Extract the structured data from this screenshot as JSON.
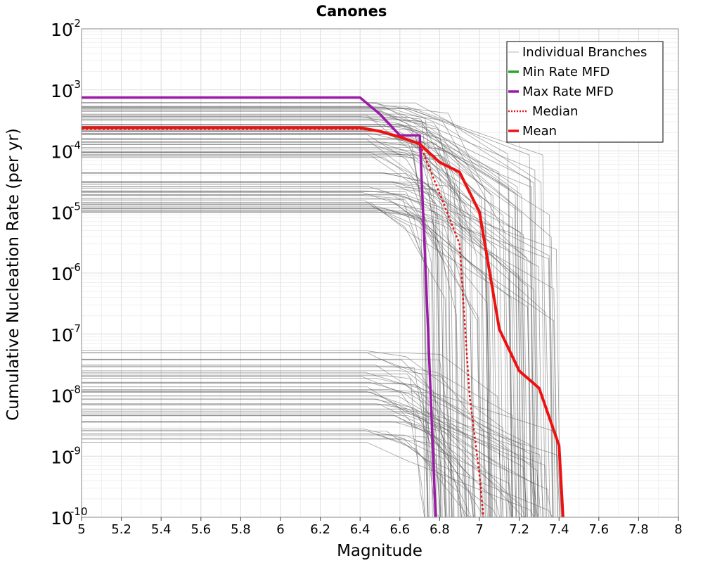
{
  "chart_data": {
    "type": "line",
    "title": "Canones",
    "xlabel": "Magnitude",
    "ylabel": "Cumulative Nucleation Rate (per yr)",
    "xlim": [
      5,
      8
    ],
    "ylim": [
      1e-10,
      0.01
    ],
    "y_scale": "log",
    "grid": true,
    "legend_position": "top-right",
    "x_ticks": [
      "5",
      "5.2",
      "5.4",
      "5.6",
      "5.8",
      "6",
      "6.2",
      "6.4",
      "6.6",
      "6.8",
      "7",
      "7.2",
      "7.4",
      "7.6",
      "7.8",
      "8"
    ],
    "x_tick_values": [
      5,
      5.2,
      5.4,
      5.6,
      5.8,
      6,
      6.2,
      6.4,
      6.6,
      6.8,
      7,
      7.2,
      7.4,
      7.6,
      7.8,
      8
    ],
    "y_ticks": [
      {
        "base": "10",
        "exp": "-10",
        "value": 1e-10
      },
      {
        "base": "10",
        "exp": "-9",
        "value": 1e-09
      },
      {
        "base": "10",
        "exp": "-8",
        "value": 1e-08
      },
      {
        "base": "10",
        "exp": "-7",
        "value": 1e-07
      },
      {
        "base": "10",
        "exp": "-6",
        "value": 1e-06
      },
      {
        "base": "10",
        "exp": "-5",
        "value": 1e-05
      },
      {
        "base": "10",
        "exp": "-4",
        "value": 0.0001
      },
      {
        "base": "10",
        "exp": "-3",
        "value": 0.001
      },
      {
        "base": "10",
        "exp": "-2",
        "value": 0.01
      }
    ],
    "legend": [
      {
        "label": "Individual Branches",
        "color": "#b4b4b4",
        "style": "thin"
      },
      {
        "label": "Min Rate MFD",
        "color": "#22aa22",
        "style": "solid"
      },
      {
        "label": "Max Rate MFD",
        "color": "#9b1aa8",
        "style": "solid"
      },
      {
        "label": "Median",
        "color": "#ee1111",
        "style": "dotted"
      },
      {
        "label": "Mean",
        "color": "#ee1111",
        "style": "solid"
      }
    ],
    "colors": {
      "branch": "#555555",
      "min": "#22aa22",
      "max": "#9b1aa8",
      "median": "#ee1111",
      "mean": "#ee1111"
    },
    "series": [
      {
        "name": "Max Rate MFD",
        "x": [
          5,
          6.4,
          6.5,
          6.6,
          6.7,
          6.73,
          6.78
        ],
        "y": [
          0.00075,
          0.00075,
          0.0004,
          0.00018,
          0.00018,
          1e-06,
          1e-10
        ]
      },
      {
        "name": "Median",
        "x": [
          5,
          6.4,
          6.5,
          6.6,
          6.7,
          6.8,
          6.9,
          6.95,
          7.0,
          7.02
        ],
        "y": [
          0.00023,
          0.00023,
          0.00021,
          0.00017,
          0.00013,
          2e-05,
          3e-06,
          1e-08,
          5e-10,
          1e-10
        ]
      },
      {
        "name": "Mean",
        "x": [
          5,
          6.4,
          6.5,
          6.6,
          6.7,
          6.8,
          6.9,
          7.0,
          7.1,
          7.2,
          7.3,
          7.4,
          7.42
        ],
        "y": [
          0.00024,
          0.00024,
          0.00021,
          0.00017,
          0.00013,
          6.5e-05,
          4.5e-05,
          1e-05,
          1.2e-07,
          2.5e-08,
          1.3e-08,
          1.5e-09,
          1e-10
        ]
      }
    ],
    "branch_clusters": [
      {
        "levels": [
          0.0006,
          0.00055,
          0.0005,
          0.00045,
          0.0004,
          0.00036,
          0.00032,
          0.00028,
          0.00025,
          0.00022,
          0.0002,
          0.00018,
          0.00016,
          0.00014,
          0.00012,
          0.0001,
          9e-05,
          8e-05
        ]
      },
      {
        "levels": [
          4.2e-05,
          3.3e-05,
          2.8e-05,
          2.4e-05,
          2.1e-05,
          1.8e-05,
          1.6e-05,
          1.4e-05,
          1.25e-05,
          1.1e-05,
          1e-05
        ]
      },
      {
        "levels": [
          5e-08,
          4e-08,
          3e-08,
          2.4e-08,
          2e-08,
          1.6e-08,
          1.3e-08,
          1.1e-08,
          9e-09,
          7e-09,
          5.5e-09,
          4.5e-09,
          3.5e-09,
          2.7e-09,
          2.2e-09,
          1.8e-09
        ]
      }
    ]
  }
}
